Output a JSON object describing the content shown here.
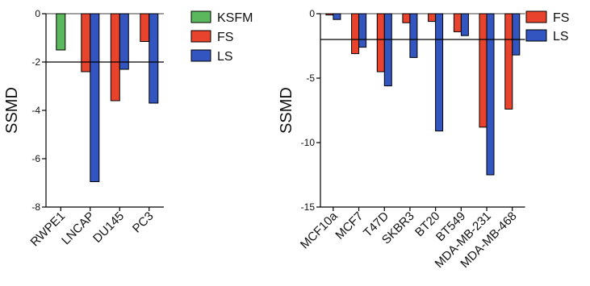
{
  "colors": {
    "KSFM": "#5cb85c",
    "FS": "#e8432d",
    "LS": "#3355c0",
    "axis": "#000000"
  },
  "chart_data": [
    {
      "type": "bar",
      "ylabel": "SSMD",
      "ylim": [
        -8,
        0
      ],
      "yticks": [
        0,
        -2,
        -4,
        -6,
        -8
      ],
      "threshold": -2,
      "categories": [
        "RWPE1",
        "LNCAP",
        "DU145",
        "PC3"
      ],
      "series": [
        {
          "name": "KSFM",
          "values": [
            -1.5,
            null,
            null,
            null
          ]
        },
        {
          "name": "FS",
          "values": [
            null,
            -2.4,
            -3.6,
            -1.15
          ]
        },
        {
          "name": "LS",
          "values": [
            null,
            -6.95,
            -2.3,
            -3.7
          ]
        }
      ],
      "legend": [
        "KSFM",
        "FS",
        "LS"
      ],
      "legend_position": "right"
    },
    {
      "type": "bar",
      "ylabel": "SSMD",
      "ylim": [
        -15,
        0
      ],
      "yticks": [
        0,
        -5,
        -10,
        -15
      ],
      "threshold": -2,
      "categories": [
        "MCF10a",
        "MCF7",
        "T47D",
        "SKBR3",
        "BT20",
        "BT549",
        "MDA-MB-231",
        "MDA-MB-468"
      ],
      "series": [
        {
          "name": "FS",
          "values": [
            -0.1,
            -3.1,
            -4.5,
            -0.7,
            -0.6,
            -1.4,
            -8.8,
            -7.4
          ]
        },
        {
          "name": "LS",
          "values": [
            -0.45,
            -2.6,
            -5.6,
            -3.4,
            -9.1,
            -1.7,
            -12.5,
            -3.2
          ]
        }
      ],
      "legend": [
        "FS",
        "LS"
      ],
      "legend_position": "top-right"
    }
  ]
}
